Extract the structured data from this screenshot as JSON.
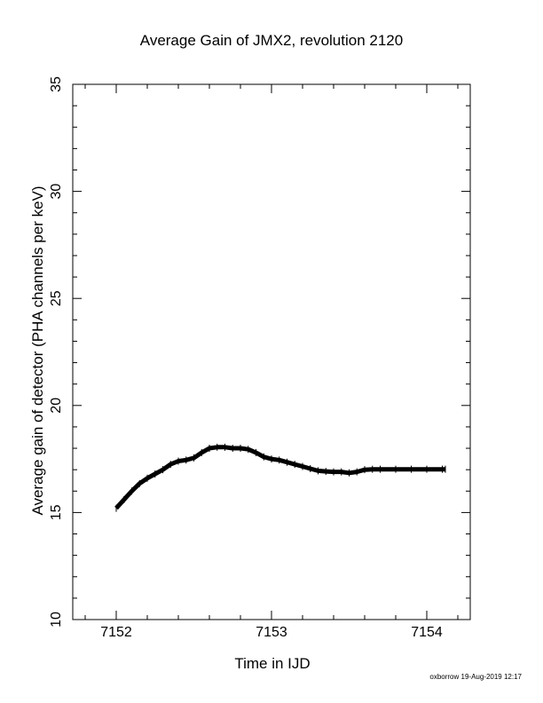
{
  "chart_data": {
    "type": "line",
    "title": "Average Gain of JMX2, revolution 2120",
    "xlabel": "Time in IJD",
    "ylabel": "Average gain of detector (PHA channels per keV)",
    "xlim": [
      7151.72,
      7154.28
    ],
    "ylim": [
      10,
      35
    ],
    "xticks": [
      7152,
      7153,
      7154
    ],
    "xtick_labels": [
      "7152",
      "7153",
      "7154"
    ],
    "yticks": [
      10,
      15,
      20,
      25,
      30,
      35
    ],
    "ytick_labels": [
      "10",
      "15",
      "20",
      "25",
      "30",
      "35"
    ],
    "grid": false,
    "series": [
      {
        "color": "#000000",
        "x": [
          7152.0,
          7152.05,
          7152.1,
          7152.15,
          7152.2,
          7152.25,
          7152.3,
          7152.35,
          7152.4,
          7152.45,
          7152.5,
          7152.55,
          7152.6,
          7152.65,
          7152.7,
          7152.75,
          7152.8,
          7152.85,
          7152.9,
          7152.95,
          7153.0,
          7153.05,
          7153.1,
          7153.15,
          7153.2,
          7153.25,
          7153.3,
          7153.35,
          7153.4,
          7153.45,
          7153.5,
          7153.55,
          7153.6,
          7153.65,
          7153.7,
          7153.8,
          7153.9,
          7154.0,
          7154.1,
          7154.12
        ],
        "y": [
          15.2,
          15.6,
          16.0,
          16.35,
          16.6,
          16.8,
          17.0,
          17.25,
          17.4,
          17.45,
          17.55,
          17.8,
          18.0,
          18.05,
          18.05,
          18.0,
          18.0,
          17.95,
          17.8,
          17.6,
          17.5,
          17.45,
          17.35,
          17.25,
          17.15,
          17.05,
          16.95,
          16.92,
          16.9,
          16.9,
          16.85,
          16.9,
          17.0,
          17.02,
          17.02,
          17.02,
          17.02,
          17.02,
          17.02,
          17.02
        ]
      }
    ]
  },
  "footer": "oxborrow 19-Aug-2019 12:17"
}
